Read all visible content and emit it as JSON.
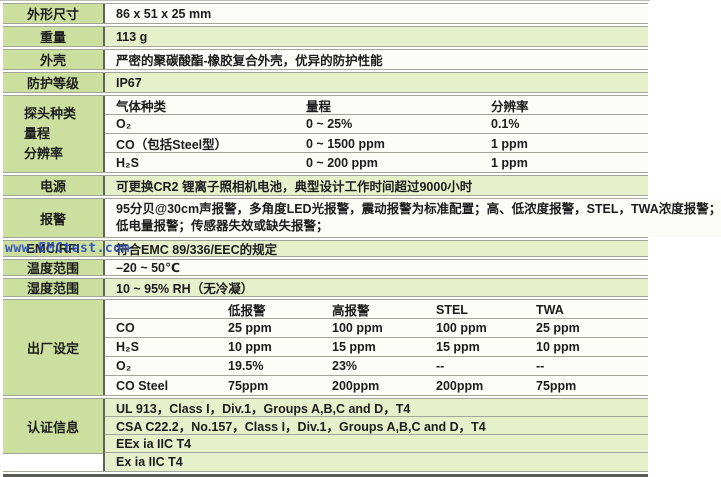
{
  "colors": {
    "label_bg": "#cddf9f",
    "row_green": "#e6f0ca",
    "row_white": "#fcfdf8",
    "divider": "#60635b",
    "grid_line": "#a2a69a",
    "text": "#1c1c1c",
    "watermark_blue": "#2346be"
  },
  "watermark_text": "www.EMCtest.com",
  "dimensions": {
    "label": "外形尺寸",
    "value": "86 x 51 x 25 mm"
  },
  "weight": {
    "label": "重量",
    "value": "113 g"
  },
  "housing": {
    "label": "外壳",
    "value": "严密的聚碳酸酯-橡胶复合外壳，优异的防护性能"
  },
  "ip_rating": {
    "label": "防护等级",
    "value": "IP67"
  },
  "sensors": {
    "label_lines": [
      "探头种类",
      "量程",
      "分辨率"
    ],
    "col_headers": [
      "气体种类",
      "量程",
      "分辨率"
    ],
    "rows": [
      {
        "gas": "O₂",
        "range": "0 ~ 25%",
        "resolution": "0.1%"
      },
      {
        "gas": "CO（包括Steel型）",
        "range": "0 ~ 1500 ppm",
        "resolution": "1 ppm"
      },
      {
        "gas": "H₂S",
        "range": "0 ~ 200 ppm",
        "resolution": "1 ppm"
      }
    ]
  },
  "power": {
    "label": "电源",
    "value": "可更换CR2 锂离子照相机电池，典型设计工作时间超过9000小时"
  },
  "alarm": {
    "label": "报警",
    "line1": "95分贝@30cm声报警，多角度LED光报警，震动报警为标准配置；高、低浓度报警，STEL，TWA浓度报警；",
    "line2": "低电量报警；传感器失效或缺失报警；"
  },
  "emc": {
    "label": "EMC/RFI",
    "value": "符合EMC 89/336/EEC的规定"
  },
  "temperature": {
    "label": "温度范围",
    "value": "–20 ~ 50℃"
  },
  "humidity": {
    "label": "湿度范围",
    "value": "10 ~ 95% RH（无冷凝）"
  },
  "factory_settings": {
    "label": "出厂设定",
    "col_headers": [
      "低报警",
      "高报警",
      "STEL",
      "TWA"
    ],
    "rows": [
      {
        "gas": "CO",
        "low": "25 ppm",
        "high": "100 ppm",
        "stel": "100 ppm",
        "twa": "25 ppm"
      },
      {
        "gas": "H₂S",
        "low": "10 ppm",
        "high": "15 ppm",
        "stel": "15 ppm",
        "twa": "10 ppm"
      },
      {
        "gas": "O₂",
        "low": "19.5%",
        "high": "23%",
        "stel": "--",
        "twa": "--"
      },
      {
        "gas": "CO Steel",
        "low": "75ppm",
        "high": "200ppm",
        "stel": "200ppm",
        "twa": "75ppm"
      }
    ]
  },
  "certifications": {
    "label": "认证信息",
    "lines": [
      "UL 913，Class I，Div.1，Groups A,B,C and D，T4",
      "CSA C22.2，No.157，Class I，Div.1，Groups A,B,C and D，T4",
      "EEx ia IIC T4",
      "Ex ia IIC T4"
    ]
  }
}
